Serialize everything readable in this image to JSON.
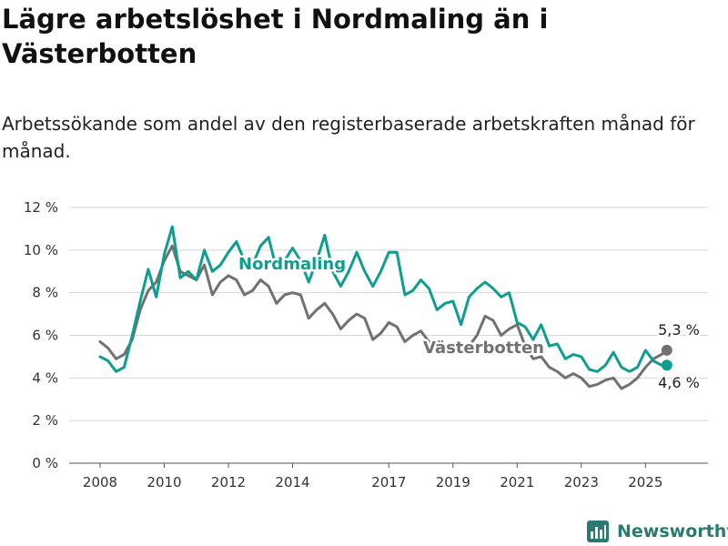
{
  "title": "Lägre arbetslöshet i Nordmaling än i Västerbotten",
  "subtitle": "Arbetssökande som andel av den registerbaserade arbetskraften månad för månad.",
  "brand": {
    "name": "Newsworthy"
  },
  "colors": {
    "nordmaling": "#0e9e8f",
    "vasterbotten": "#717171",
    "grid": "#d7d7d7",
    "axis": "#555555"
  },
  "chart_data": {
    "type": "line",
    "x_ticks": [
      "2008",
      "2010",
      "2012",
      "2014",
      "2017",
      "2019",
      "2021",
      "2023",
      "2025"
    ],
    "y_ticks": [
      "0 %",
      "2 %",
      "4 %",
      "6 %",
      "8 %",
      "10 %",
      "12 %"
    ],
    "ylim": [
      0,
      12
    ],
    "grid": true,
    "end_labels": {
      "nordmaling": "4,6 %",
      "vasterbotten": "5,3 %"
    },
    "series": [
      {
        "name": "Nordmaling",
        "points": [
          [
            "2008-01",
            5.0
          ],
          [
            "2008-04",
            4.8
          ],
          [
            "2008-07",
            4.3
          ],
          [
            "2008-10",
            4.5
          ],
          [
            "2009-01",
            6.0
          ],
          [
            "2009-04",
            7.6
          ],
          [
            "2009-07",
            9.1
          ],
          [
            "2009-10",
            7.8
          ],
          [
            "2010-01",
            9.8
          ],
          [
            "2010-04",
            11.1
          ],
          [
            "2010-07",
            8.7
          ],
          [
            "2010-10",
            9.0
          ],
          [
            "2011-01",
            8.6
          ],
          [
            "2011-04",
            10.0
          ],
          [
            "2011-07",
            9.0
          ],
          [
            "2011-10",
            9.3
          ],
          [
            "2012-01",
            9.9
          ],
          [
            "2012-04",
            10.4
          ],
          [
            "2012-07",
            9.5
          ],
          [
            "2012-10",
            9.3
          ],
          [
            "2013-01",
            10.2
          ],
          [
            "2013-04",
            10.6
          ],
          [
            "2013-07",
            9.1
          ],
          [
            "2013-10",
            9.5
          ],
          [
            "2014-01",
            10.1
          ],
          [
            "2014-04",
            9.5
          ],
          [
            "2014-07",
            8.5
          ],
          [
            "2014-10",
            9.5
          ],
          [
            "2015-01",
            10.7
          ],
          [
            "2015-04",
            9.0
          ],
          [
            "2015-07",
            8.3
          ],
          [
            "2015-10",
            9.0
          ],
          [
            "2016-01",
            9.9
          ],
          [
            "2016-04",
            9.0
          ],
          [
            "2016-07",
            8.3
          ],
          [
            "2016-10",
            9.0
          ],
          [
            "2017-01",
            9.9
          ],
          [
            "2017-04",
            9.9
          ],
          [
            "2017-07",
            7.9
          ],
          [
            "2017-10",
            8.1
          ],
          [
            "2018-01",
            8.6
          ],
          [
            "2018-04",
            8.2
          ],
          [
            "2018-07",
            7.2
          ],
          [
            "2018-10",
            7.5
          ],
          [
            "2019-01",
            7.6
          ],
          [
            "2019-04",
            6.5
          ],
          [
            "2019-07",
            7.8
          ],
          [
            "2019-10",
            8.2
          ],
          [
            "2020-01",
            8.5
          ],
          [
            "2020-04",
            8.2
          ],
          [
            "2020-07",
            7.8
          ],
          [
            "2020-10",
            8.0
          ],
          [
            "2021-01",
            6.6
          ],
          [
            "2021-04",
            6.4
          ],
          [
            "2021-07",
            5.8
          ],
          [
            "2021-10",
            6.5
          ],
          [
            "2022-01",
            5.5
          ],
          [
            "2022-04",
            5.6
          ],
          [
            "2022-07",
            4.9
          ],
          [
            "2022-10",
            5.1
          ],
          [
            "2023-01",
            5.0
          ],
          [
            "2023-04",
            4.4
          ],
          [
            "2023-07",
            4.3
          ],
          [
            "2023-10",
            4.6
          ],
          [
            "2024-01",
            5.2
          ],
          [
            "2024-04",
            4.5
          ],
          [
            "2024-07",
            4.3
          ],
          [
            "2024-10",
            4.5
          ],
          [
            "2025-01",
            5.3
          ],
          [
            "2025-04",
            4.8
          ],
          [
            "2025-07",
            4.6
          ],
          [
            "2025-09",
            4.6
          ]
        ]
      },
      {
        "name": "Västerbotten",
        "points": [
          [
            "2008-01",
            5.7
          ],
          [
            "2008-04",
            5.4
          ],
          [
            "2008-07",
            4.9
          ],
          [
            "2008-10",
            5.1
          ],
          [
            "2009-01",
            5.8
          ],
          [
            "2009-04",
            7.2
          ],
          [
            "2009-07",
            8.1
          ],
          [
            "2009-10",
            8.5
          ],
          [
            "2010-01",
            9.5
          ],
          [
            "2010-04",
            10.2
          ],
          [
            "2010-07",
            9.0
          ],
          [
            "2010-10",
            8.8
          ],
          [
            "2011-01",
            8.6
          ],
          [
            "2011-04",
            9.3
          ],
          [
            "2011-07",
            7.9
          ],
          [
            "2011-10",
            8.5
          ],
          [
            "2012-01",
            8.8
          ],
          [
            "2012-04",
            8.6
          ],
          [
            "2012-07",
            7.9
          ],
          [
            "2012-10",
            8.1
          ],
          [
            "2013-01",
            8.6
          ],
          [
            "2013-04",
            8.3
          ],
          [
            "2013-07",
            7.5
          ],
          [
            "2013-10",
            7.9
          ],
          [
            "2014-01",
            8.0
          ],
          [
            "2014-04",
            7.9
          ],
          [
            "2014-07",
            6.8
          ],
          [
            "2014-10",
            7.2
          ],
          [
            "2015-01",
            7.5
          ],
          [
            "2015-04",
            7.0
          ],
          [
            "2015-07",
            6.3
          ],
          [
            "2015-10",
            6.7
          ],
          [
            "2016-01",
            7.0
          ],
          [
            "2016-04",
            6.8
          ],
          [
            "2016-07",
            5.8
          ],
          [
            "2016-10",
            6.1
          ],
          [
            "2017-01",
            6.6
          ],
          [
            "2017-04",
            6.4
          ],
          [
            "2017-07",
            5.7
          ],
          [
            "2017-10",
            6.0
          ],
          [
            "2018-01",
            6.2
          ],
          [
            "2018-04",
            5.7
          ],
          [
            "2018-07",
            5.2
          ],
          [
            "2018-10",
            5.3
          ],
          [
            "2019-01",
            5.6
          ],
          [
            "2019-04",
            5.5
          ],
          [
            "2019-07",
            5.5
          ],
          [
            "2019-10",
            6.0
          ],
          [
            "2020-01",
            6.9
          ],
          [
            "2020-04",
            6.7
          ],
          [
            "2020-07",
            6.0
          ],
          [
            "2020-10",
            6.3
          ],
          [
            "2021-01",
            6.5
          ],
          [
            "2021-04",
            5.5
          ],
          [
            "2021-07",
            4.9
          ],
          [
            "2021-10",
            5.0
          ],
          [
            "2022-01",
            4.5
          ],
          [
            "2022-04",
            4.3
          ],
          [
            "2022-07",
            4.0
          ],
          [
            "2022-10",
            4.2
          ],
          [
            "2023-01",
            4.0
          ],
          [
            "2023-04",
            3.6
          ],
          [
            "2023-07",
            3.7
          ],
          [
            "2023-10",
            3.9
          ],
          [
            "2024-01",
            4.0
          ],
          [
            "2024-04",
            3.5
          ],
          [
            "2024-07",
            3.7
          ],
          [
            "2024-10",
            4.0
          ],
          [
            "2025-01",
            4.5
          ],
          [
            "2025-04",
            4.9
          ],
          [
            "2025-07",
            5.1
          ],
          [
            "2025-09",
            5.3
          ]
        ]
      }
    ]
  }
}
